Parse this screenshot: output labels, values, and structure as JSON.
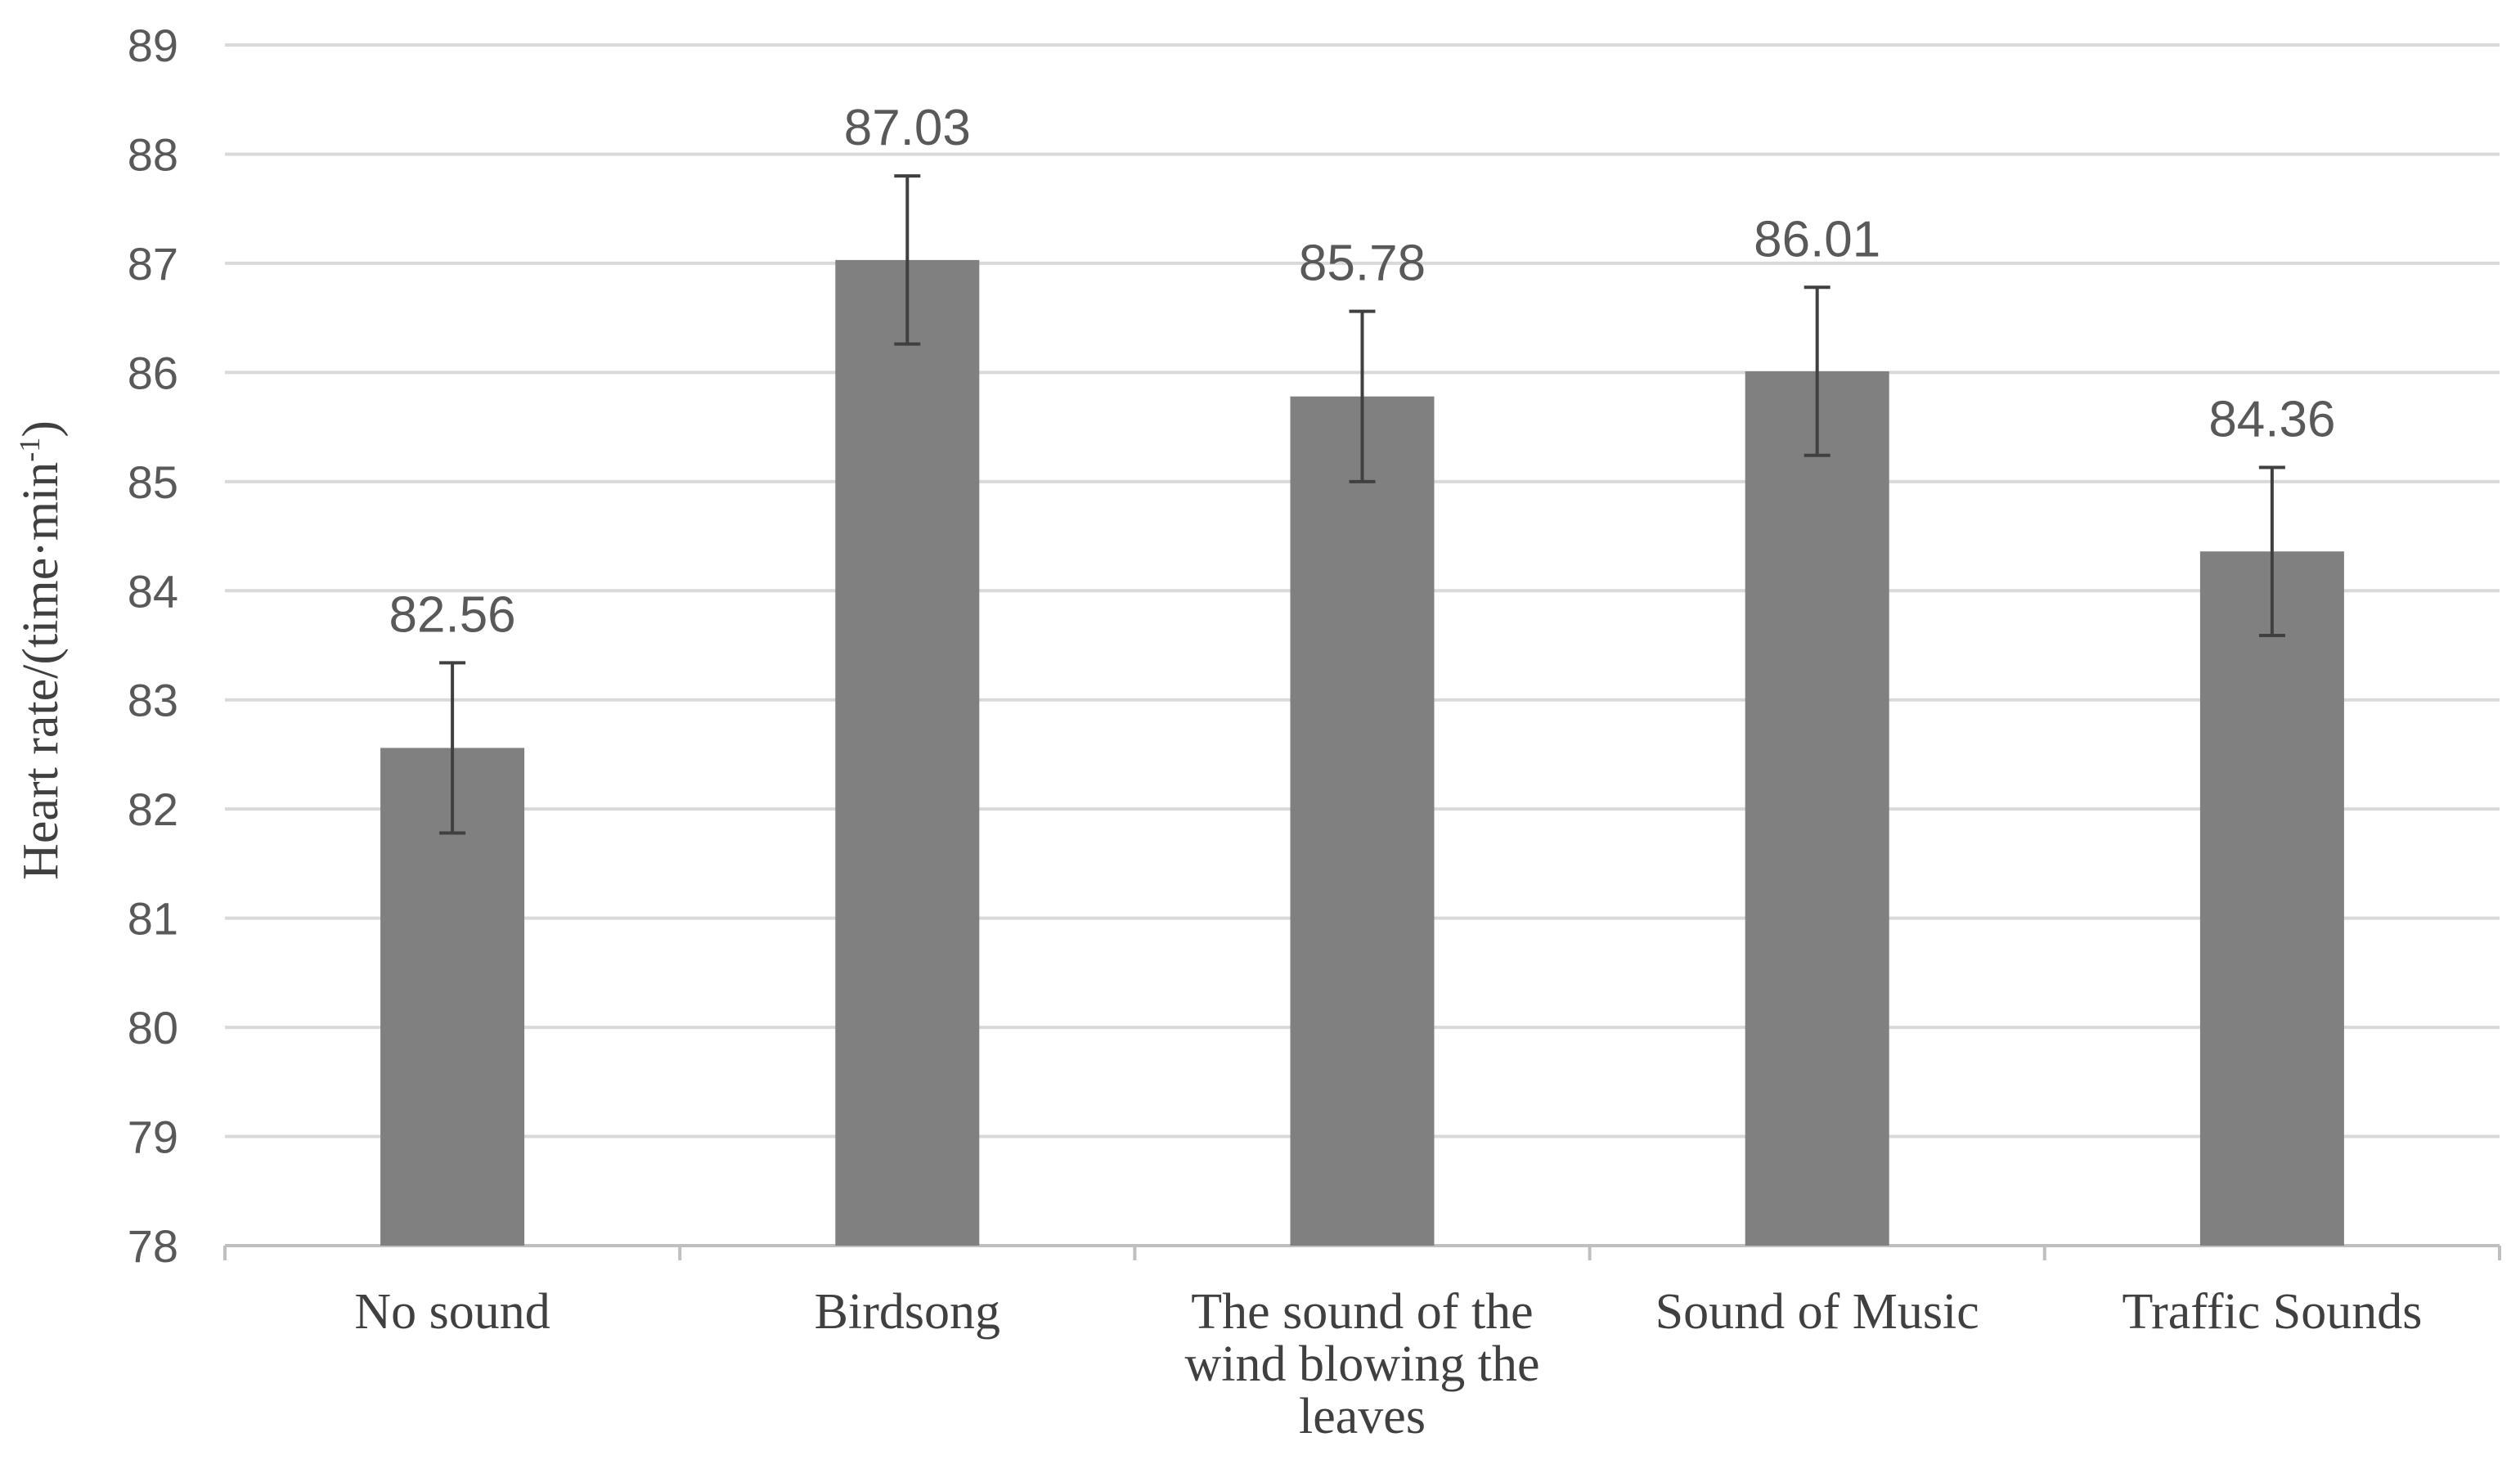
{
  "chart_data": {
    "type": "bar",
    "categories": [
      [
        "No sound"
      ],
      [
        "Birdsong"
      ],
      [
        "The sound of the",
        "wind blowing the",
        "leaves"
      ],
      [
        "Sound of Music"
      ],
      [
        "Traffic Sounds"
      ]
    ],
    "values": [
      82.56,
      87.03,
      85.78,
      86.01,
      84.36
    ],
    "error": [
      0.78,
      0.77,
      0.78,
      0.77,
      0.77
    ],
    "value_labels": [
      "82.56",
      "87.03",
      "85.78",
      "86.01",
      "84.36"
    ],
    "ylabel": {
      "main": "Heart rate/(time·min",
      "sup": "-1",
      "close": ")"
    },
    "ylim": [
      78,
      89
    ],
    "yticks": [
      78,
      79,
      80,
      81,
      82,
      83,
      84,
      85,
      86,
      87,
      88,
      89
    ],
    "grid": true,
    "legend": "none",
    "colors": {
      "bar": "#808080",
      "grid": "#d9d9d9",
      "axis": "#bfbfbf",
      "error_bar": "#404040"
    }
  }
}
